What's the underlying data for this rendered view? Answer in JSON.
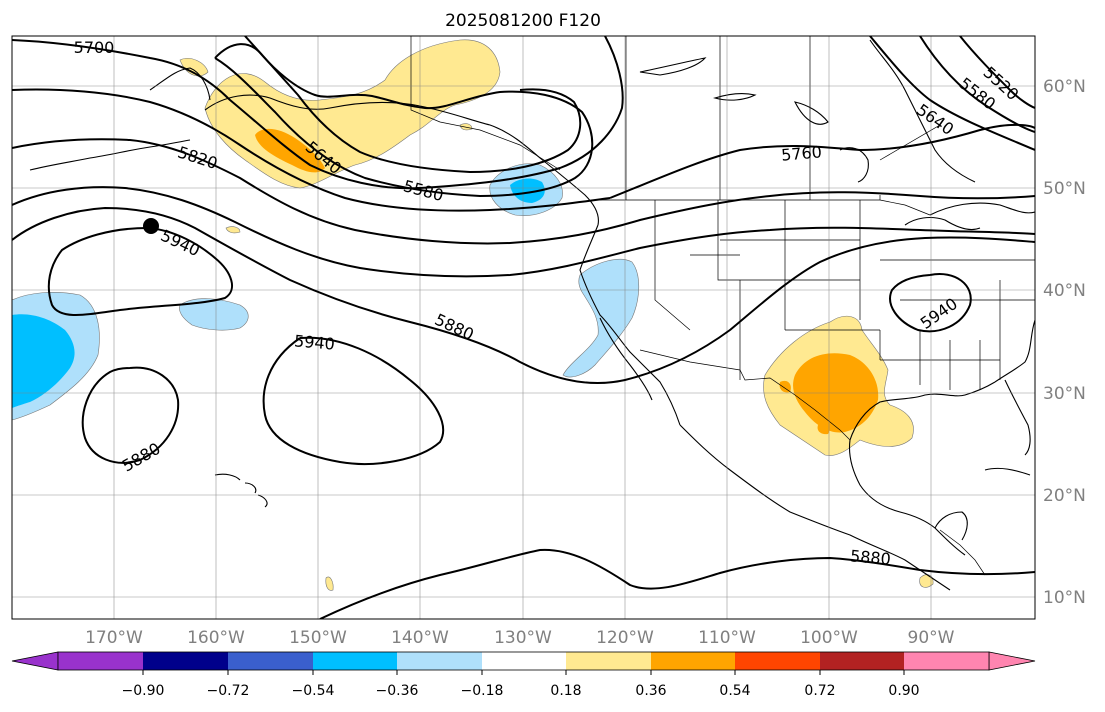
{
  "title": "2025081200 F120",
  "lon_ticks": [
    "170°W",
    "160°W",
    "150°W",
    "140°W",
    "130°W",
    "120°W",
    "110°W",
    "100°W",
    "90°W"
  ],
  "lat_ticks": [
    "60°N",
    "50°N",
    "40°N",
    "30°N",
    "20°N",
    "10°N"
  ],
  "map_extent": {
    "lon_min": -180,
    "lon_max": -80,
    "lat_min": 8,
    "lat_max": 65
  },
  "contour_labels": [
    "5700",
    "5820",
    "5640",
    "5580",
    "5760",
    "5640",
    "5580",
    "5520",
    "5940",
    "5880",
    "5940",
    "5880",
    "5940",
    "5880"
  ],
  "marker": {
    "lon": -166.5,
    "lat": 46.5
  },
  "colorbar": {
    "ticks": [
      "−0.90",
      "−0.72",
      "−0.54",
      "−0.36",
      "−0.18",
      "0.18",
      "0.36",
      "0.54",
      "0.72",
      "0.90"
    ],
    "colors": [
      "#9932cc",
      "#00008b",
      "#3a5fcd",
      "#00bfff",
      "#afe0fb",
      "#ffffff",
      "#ffe991",
      "#ffa500",
      "#ff4500",
      "#b22222",
      "#ff85b0"
    ]
  }
}
